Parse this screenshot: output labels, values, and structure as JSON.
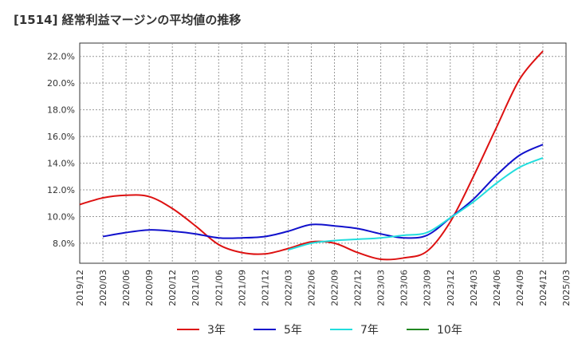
{
  "chart_data": {
    "type": "line",
    "title": "[1514]  経常利益マージンの平均値の推移",
    "xlabel": "",
    "ylabel": "",
    "ylim": [
      6.5,
      23.0
    ],
    "y_ticks": [
      "8.0%",
      "10.0%",
      "12.0%",
      "14.0%",
      "16.0%",
      "18.0%",
      "20.0%",
      "22.0%"
    ],
    "y_tick_values": [
      8,
      10,
      12,
      14,
      16,
      18,
      20,
      22
    ],
    "x_ticks": [
      "2019/12",
      "2020/03",
      "2020/06",
      "2020/09",
      "2020/12",
      "2021/03",
      "2021/06",
      "2021/09",
      "2021/12",
      "2022/03",
      "2022/06",
      "2022/09",
      "2022/12",
      "2023/03",
      "2023/06",
      "2023/09",
      "2023/12",
      "2024/03",
      "2024/06",
      "2024/09",
      "2024/12",
      "2025/03"
    ],
    "grid": true,
    "legend_position": "bottom",
    "series": [
      {
        "name": "3年",
        "color": "#dd1111",
        "x": [
          "2019/12",
          "2020/03",
          "2020/06",
          "2020/09",
          "2020/12",
          "2021/03",
          "2021/06",
          "2021/09",
          "2021/12",
          "2022/03",
          "2022/06",
          "2022/09",
          "2022/12",
          "2023/03",
          "2023/06",
          "2023/09",
          "2023/12",
          "2024/03",
          "2024/06",
          "2024/09",
          "2024/12"
        ],
        "values": [
          10.9,
          11.4,
          11.6,
          11.5,
          10.6,
          9.3,
          7.9,
          7.3,
          7.2,
          7.6,
          8.1,
          8.0,
          7.3,
          6.8,
          6.9,
          7.4,
          9.6,
          13.0,
          16.7,
          20.3,
          22.4
        ]
      },
      {
        "name": "5年",
        "color": "#1111cc",
        "x": [
          "2020/03",
          "2020/06",
          "2020/09",
          "2020/12",
          "2021/03",
          "2021/06",
          "2021/09",
          "2021/12",
          "2022/03",
          "2022/06",
          "2022/09",
          "2022/12",
          "2023/03",
          "2023/06",
          "2023/09",
          "2023/12",
          "2024/03",
          "2024/06",
          "2024/09",
          "2024/12"
        ],
        "values": [
          8.5,
          8.8,
          9.0,
          8.9,
          8.7,
          8.4,
          8.4,
          8.5,
          8.9,
          9.4,
          9.3,
          9.1,
          8.7,
          8.4,
          8.6,
          9.9,
          11.3,
          13.1,
          14.6,
          15.4
        ]
      },
      {
        "name": "7年",
        "color": "#22dddd",
        "x": [
          "2022/03",
          "2022/06",
          "2022/09",
          "2022/12",
          "2023/03",
          "2023/06",
          "2023/09",
          "2023/12",
          "2024/03",
          "2024/06",
          "2024/09",
          "2024/12"
        ],
        "values": [
          7.5,
          8.0,
          8.2,
          8.3,
          8.4,
          8.6,
          8.8,
          9.9,
          11.1,
          12.5,
          13.7,
          14.4
        ]
      },
      {
        "name": "10年",
        "color": "#228822",
        "x": [],
        "values": []
      }
    ]
  }
}
